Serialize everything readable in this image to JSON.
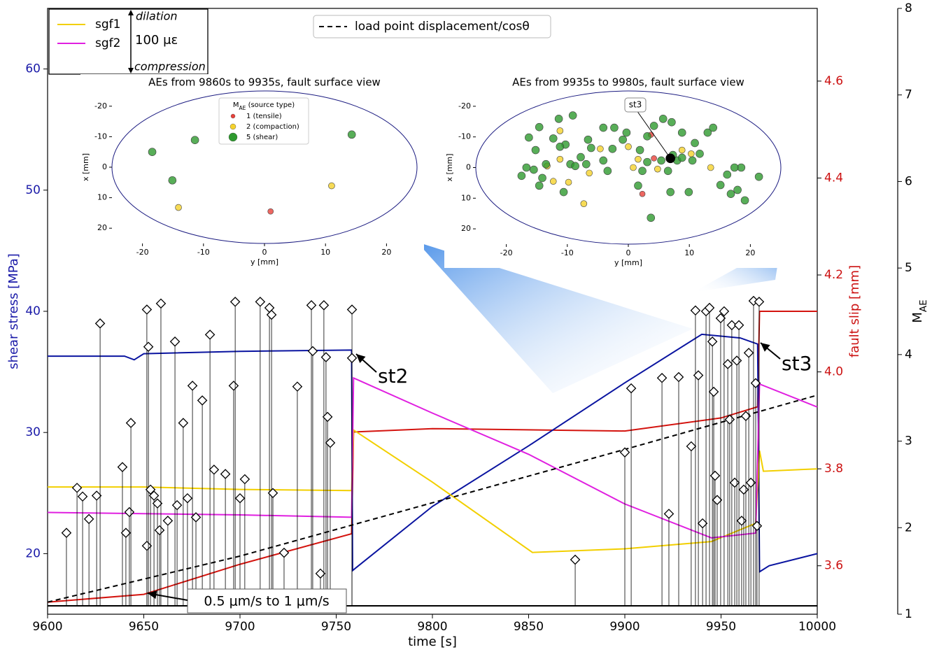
{
  "chart_data": [
    {
      "type": "line",
      "xlabel": "time [s]",
      "ylabel": "shear stress [MPa]",
      "y2label": "fault slip [mm]",
      "y3label": {
        "symbol": "M",
        "subscript": "AE"
      },
      "xlim": [
        9600,
        10000
      ],
      "xticks": [
        9600,
        9650,
        9700,
        9750,
        9800,
        9850,
        9900,
        9950,
        10000
      ],
      "ylim": [
        15,
        65
      ],
      "yticks": [
        20,
        30,
        40,
        50,
        60
      ],
      "y2lim": [
        3.5,
        4.75
      ],
      "y2ticks": [
        3.6,
        3.8,
        {
          "value": 4,
          "label": "4.0"
        },
        4.2,
        4.4,
        4.6
      ],
      "y3lim": [
        1,
        8
      ],
      "y3ticks": [
        1,
        2,
        3,
        4,
        5,
        6,
        7,
        8
      ],
      "series": [
        {
          "color": "#d4140f",
          "axis": "y2",
          "x": [
            9600,
            9650,
            9700,
            9758,
            9759,
            9800,
            9900,
            9950,
            9969,
            9970,
            10000
          ],
          "values": [
            3.525,
            3.541,
            3.603,
            3.666,
            3.876,
            3.883,
            3.878,
            3.905,
            3.928,
            4.125,
            4.125
          ]
        },
        {
          "color": "#0a14a0",
          "axis": "y",
          "x": [
            9600,
            9640,
            9645,
            9650,
            9700,
            9758,
            9758.5,
            9760,
            9800,
            9850,
            9900,
            9940,
            9960,
            9969,
            9970,
            9975,
            10000
          ],
          "values": [
            36.3,
            36.3,
            36.0,
            36.5,
            36.7,
            36.8,
            18.6,
            18.8,
            23.9,
            28.9,
            34.1,
            38.1,
            37.8,
            37.3,
            18.5,
            19.0,
            20.0
          ]
        },
        {
          "name": "sgf1",
          "color": "#f2cf00",
          "axis": "y",
          "x": [
            9600,
            9650,
            9700,
            9758,
            9759,
            9800,
            9852,
            9900,
            9945,
            9968,
            9970,
            9972,
            10000
          ],
          "values": [
            25.5,
            25.5,
            25.3,
            25.2,
            30.2,
            25.9,
            20.1,
            20.4,
            21.0,
            22.5,
            28.5,
            26.8,
            27.0
          ]
        },
        {
          "name": "sgf2",
          "color": "#e020e0",
          "axis": "y",
          "x": [
            9600,
            9650,
            9700,
            9758,
            9759,
            9800,
            9850,
            9900,
            9945,
            9968,
            9970,
            10000
          ],
          "values": [
            23.4,
            23.3,
            23.2,
            23.0,
            34.5,
            31.6,
            28.2,
            24.1,
            21.3,
            21.7,
            34.0,
            32.1
          ]
        },
        {
          "name": "load point displacement/cosθ",
          "color": "#000000",
          "dashed": true,
          "axis": "y2",
          "x": [
            9600,
            9700,
            9800,
            9900,
            10000
          ],
          "values": [
            3.525,
            3.62,
            3.73,
            3.84,
            3.952
          ]
        },
        {
          "type": "stem",
          "color": "#000000",
          "axis": "y3",
          "x": [
            9609.8,
            9615.3,
            9618.2,
            9621.5,
            9625.5,
            9627.3,
            9638.9,
            9640.7,
            9642.5,
            9643.3,
            9651.6,
            9651.6,
            9652.4,
            9653.5,
            9655.3,
            9657.1,
            9658.2,
            9658.9,
            9662.5,
            9666.2,
            9667.3,
            9670.5,
            9672.7,
            9675.3,
            9677.1,
            9680.4,
            9684.4,
            9686.5,
            9692.4,
            9696.7,
            9697.5,
            9700.0,
            9702.5,
            9710.5,
            9715.3,
            9716.4,
            9717.1,
            9722.9,
            9729.8,
            9737.1,
            9737.8,
            9741.8,
            9743.6,
            9744.7,
            9745.5,
            9746.9,
            9758.2,
            9758.2,
            9874.2,
            9900.0,
            9903.3,
            9919.3,
            9922.9,
            9928.0,
            9934.5,
            9936.7,
            9938.2,
            9940.4,
            9942.2,
            9944.0,
            9945.5,
            9946.2,
            9946.9,
            9948.0,
            9949.8,
            9951.6,
            9953.5,
            9954.5,
            9955.6,
            9957.1,
            9958.2,
            9959.3,
            9960.7,
            9961.8,
            9962.9,
            9964.4,
            9965.5,
            9966.9,
            9968.0,
            9968.7,
            9969.8
          ],
          "values": [
            1.94,
            2.46,
            2.36,
            2.1,
            2.37,
            4.36,
            2.7,
            1.94,
            2.18,
            3.21,
            4.52,
            1.79,
            4.09,
            2.44,
            2.37,
            2.28,
            1.97,
            4.59,
            2.08,
            4.15,
            2.26,
            3.21,
            2.34,
            3.64,
            2.12,
            3.47,
            4.23,
            2.67,
            2.62,
            3.64,
            4.61,
            2.34,
            2.56,
            4.61,
            4.54,
            4.46,
            2.4,
            1.71,
            3.63,
            4.57,
            4.04,
            1.47,
            4.57,
            3.97,
            3.28,
            2.98,
            4.52,
            3.96,
            1.63,
            2.87,
            3.61,
            3.73,
            2.16,
            3.74,
            2.94,
            4.51,
            3.76,
            2.05,
            4.5,
            4.54,
            4.15,
            3.57,
            2.6,
            2.32,
            4.42,
            4.5,
            3.89,
            3.25,
            4.34,
            2.52,
            3.93,
            4.34,
            2.08,
            2.44,
            3.29,
            4.02,
            2.52,
            4.62,
            3.67,
            2.02,
            4.61
          ]
        }
      ],
      "scale_bar": {
        "top": "dilation",
        "label": "100 με",
        "bottom": "compression"
      },
      "annotations": [
        "st2",
        "st3",
        "0.5 μm/s to 1 μm/s"
      ]
    },
    {
      "type": "scatter",
      "title": "AEs from 9860s to 9935s, fault surface view",
      "xlabel": "y [mm]",
      "ylabel": "x [mm]",
      "xlim": [
        -25,
        25
      ],
      "xticks": [
        -20,
        -10,
        0,
        10,
        20
      ],
      "ylim": [
        25,
        -25
      ],
      "yticks": [
        -20,
        -10,
        0,
        10,
        20
      ],
      "legend_title": {
        "symbol": "M",
        "subscript": "AE",
        "rest": " (source type)"
      },
      "series": [
        {
          "name": "1 (tensile)",
          "color": "#e8413a",
          "x": [
            1.0
          ],
          "y": [
            14.5
          ]
        },
        {
          "name": "2 (compaction)",
          "color": "#f5d22c",
          "x": [
            11.0,
            -14.1
          ],
          "y": [
            6.1,
            13.2
          ]
        },
        {
          "name": "5 (shear)",
          "color": "#2e9a2e",
          "x": [
            -18.4,
            -11.4,
            -15.1,
            14.3
          ],
          "y": [
            -5.0,
            -8.9,
            4.3,
            -10.7
          ]
        }
      ]
    },
    {
      "type": "scatter",
      "title": "AEs from 9935s to 9980s, fault surface view",
      "xlabel": "y [mm]",
      "ylabel": "x [mm]",
      "xlim": [
        -25,
        25
      ],
      "xticks": [
        -20,
        -10,
        0,
        10,
        20
      ],
      "ylim": [
        25,
        -25
      ],
      "yticks": [
        -20,
        -10,
        0,
        10,
        20
      ],
      "annotation": "st3",
      "series": [
        {
          "color": "#e8413a",
          "x": [
            3.7,
            4.2,
            2.3
          ],
          "y": [
            -10.7,
            -3.0,
            8.6
          ]
        },
        {
          "color": "#f5d22c",
          "x": [
            -11.2,
            -13.3,
            -11.2,
            -6.4,
            -4.6,
            0,
            1.6,
            0.8,
            4.8,
            8.8,
            10.3,
            13.5,
            -7.3,
            -9.8,
            -12.3
          ],
          "y": [
            -12.0,
            -0.5,
            -2.7,
            1.8,
            -6.1,
            -6.8,
            -2.7,
            0,
            0.5,
            -5.7,
            -4.5,
            0,
            11.8,
            4.8,
            4.5
          ]
        },
        {
          "color": "#2e9a2e",
          "x": [
            -11.4,
            -9.1,
            -14.6,
            -16.3,
            -12.3,
            -10.3,
            -6.6,
            -4.1,
            -2.3,
            -0.9,
            -6.1,
            -7.8,
            -9.5,
            -15.2,
            -16.7,
            -15.5,
            -14.1,
            -14.6,
            -11.2,
            -8.7,
            -6.9,
            -4.1,
            -3.4,
            -2.6,
            -0.3,
            1.9,
            3.1,
            4.2,
            5.7,
            7.1,
            8.8,
            10.9,
            13.0,
            13.9,
            11.7,
            10.5,
            8.0,
            5.4,
            8.8,
            2.3,
            3.1,
            18.5,
            17.4,
            16.2,
            21.4,
            15.1,
            17.9,
            16.8,
            19.1,
            3.7,
            6.9,
            9.9,
            7.3,
            1.6,
            -10.6,
            -13.5,
            -17.5,
            6.5
          ],
          "y": [
            -15.9,
            -17.0,
            -13.2,
            -9.8,
            -9.5,
            -7.5,
            -9.1,
            -13.0,
            -13.0,
            -9.1,
            -6.4,
            -3.4,
            -1.1,
            -5.7,
            0,
            0.7,
            3.4,
            5.9,
            -6.8,
            -0.5,
            -1.1,
            -2.3,
            1.1,
            -6.1,
            -11.4,
            -5.7,
            -10.2,
            -13.6,
            -15.9,
            -14.8,
            -11.4,
            -8.0,
            -11.4,
            -13.0,
            -4.5,
            -2.3,
            -2.3,
            -2.3,
            -3.2,
            1.1,
            -1.8,
            0,
            0,
            2.3,
            3.0,
            5.7,
            7.3,
            8.6,
            10.7,
            16.4,
            8.0,
            8.0,
            -4.1,
            5.9,
            8.0,
            -1.1,
            2.7,
            1.1
          ]
        },
        {
          "color": "#000000",
          "x": [
            6.9
          ],
          "y": [
            -3.0
          ]
        }
      ]
    }
  ]
}
